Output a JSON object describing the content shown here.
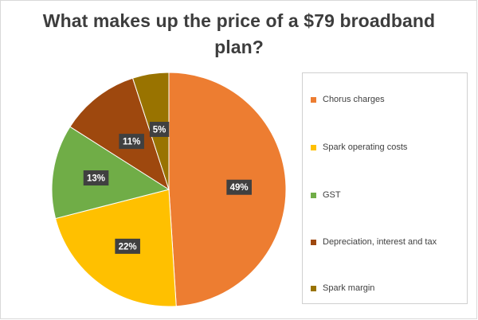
{
  "chart_data": {
    "type": "pie",
    "title": "What makes up the price of a $79 broadband plan?",
    "title_lines": [
      "What makes up the price of a $79 broadband",
      "plan?"
    ],
    "categories": [
      "Chorus charges",
      "Spark operating costs",
      "GST",
      "Depreciation, interest and tax",
      "Spark margin"
    ],
    "values": [
      49,
      22,
      13,
      11,
      5
    ],
    "data_labels": [
      "49%",
      "22%",
      "13%",
      "11%",
      "5%"
    ],
    "colors": [
      "#ED7D31",
      "#FFC000",
      "#70AD47",
      "#9E480E",
      "#997300"
    ],
    "start_angle": "top (12 o'clock)",
    "direction": "clockwise",
    "legend_position": "right"
  }
}
